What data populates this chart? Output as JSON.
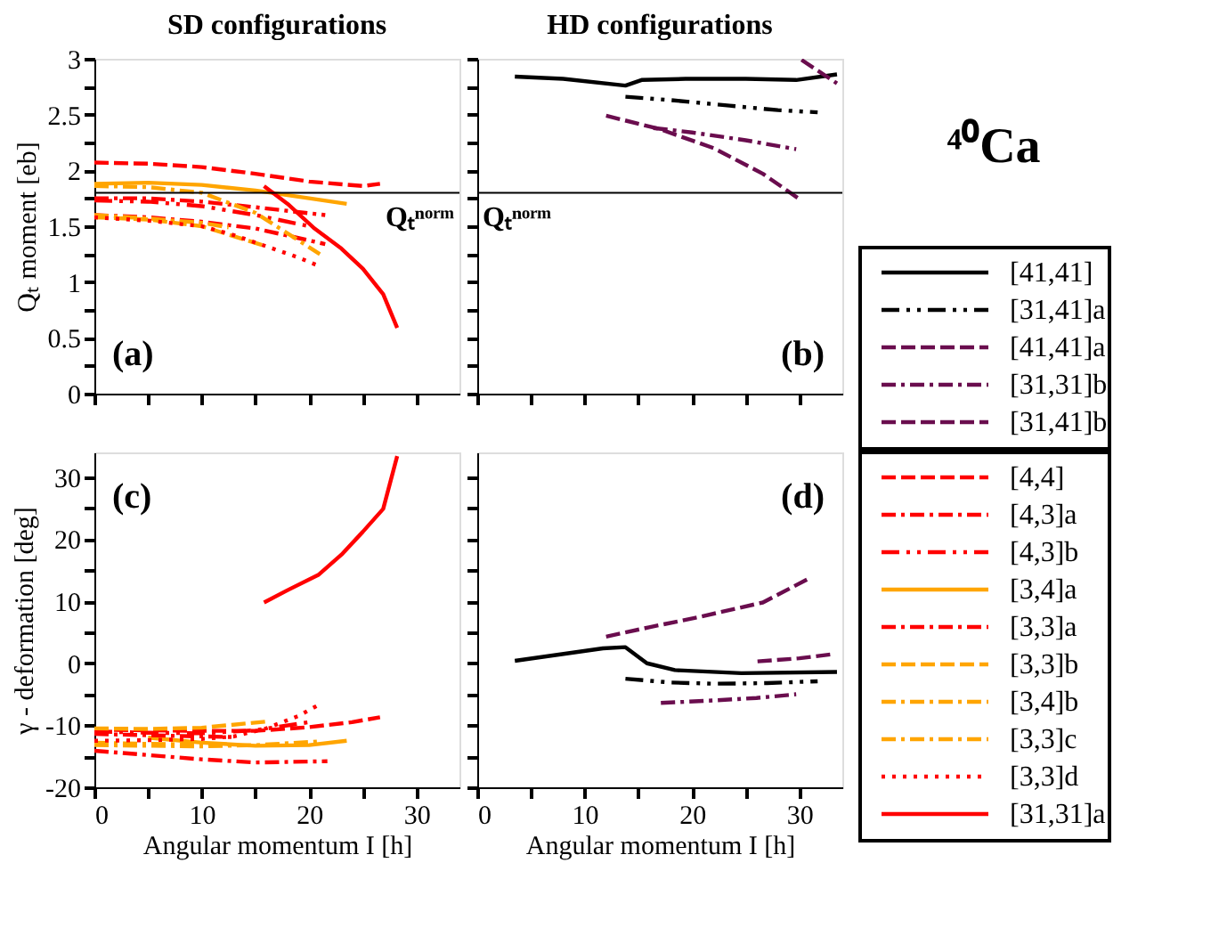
{
  "chart_data": [
    {
      "type": "line",
      "title": "SD  configurations",
      "ylabel": "Qₜ moment [eb]",
      "xlim": [
        0,
        34
      ],
      "ylim": [
        0,
        3
      ],
      "xticks": [
        0,
        {
          "value": 5,
          "label": null
        },
        10,
        {
          "value": 15,
          "label": null
        },
        20,
        {
          "value": 25,
          "label": null
        },
        30
      ],
      "yticks": [
        0,
        {
          "value": 0.25,
          "label": null
        },
        0.5,
        {
          "value": 0.75,
          "label": null
        },
        1,
        {
          "value": 1.25,
          "label": null
        },
        1.5,
        {
          "value": 1.75,
          "label": null
        },
        2,
        {
          "value": 2.25,
          "label": null
        },
        2.5,
        {
          "value": 2.75,
          "label": null
        },
        3
      ],
      "tick_labels": "y",
      "ref_lines": [
        {
          "axis": "y",
          "value": 1.8,
          "label": "Qₜⁿᵒʳᵐ",
          "color": "#000000"
        }
      ],
      "annotations": [
        "(a)"
      ],
      "series": [
        {
          "color": "#ff0000",
          "line_style": "dashed",
          "x": [
            0,
            5,
            10,
            15,
            20,
            25,
            26.6
          ],
          "values": [
            2.07,
            2.06,
            2.03,
            1.97,
            1.9,
            1.86,
            1.88
          ]
        },
        {
          "color": "#ff0000",
          "line_style": "dashdot",
          "x": [
            0,
            5,
            10,
            15,
            21.5
          ],
          "values": [
            1.75,
            1.75,
            1.72,
            1.67,
            1.6
          ]
        },
        {
          "color": "#ff0000",
          "line_style": "dashdotdot",
          "x": [
            0,
            5,
            10,
            15,
            20
          ],
          "values": [
            1.73,
            1.72,
            1.68,
            1.6,
            1.5
          ]
        },
        {
          "color": "#ffa500",
          "line_style": "solid",
          "x": [
            0,
            5,
            10,
            15,
            20,
            23.5
          ],
          "values": [
            1.88,
            1.89,
            1.87,
            1.82,
            1.75,
            1.7
          ]
        },
        {
          "color": "#ff0000",
          "line_style": "dashdot",
          "x": [
            0,
            5,
            10,
            15,
            21.5
          ],
          "values": [
            1.6,
            1.58,
            1.54,
            1.48,
            1.34
          ]
        },
        {
          "color": "#ffa500",
          "line_style": "dashed",
          "x": [
            0,
            5,
            10,
            16
          ],
          "values": [
            1.58,
            1.56,
            1.5,
            1.32
          ]
        },
        {
          "color": "#ffa500",
          "line_style": "dashdot",
          "x": [
            0,
            5,
            10,
            15,
            21
          ],
          "values": [
            1.86,
            1.85,
            1.8,
            1.62,
            1.25
          ]
        },
        {
          "color": "#ffa500",
          "line_style": "dashdot",
          "x": [
            0,
            5,
            10,
            12.5
          ],
          "values": [
            1.6,
            1.57,
            1.53,
            1.49
          ]
        },
        {
          "color": "#ff0000",
          "line_style": "dotted",
          "x": [
            0,
            5,
            10,
            13,
            16,
            19,
            21
          ],
          "values": [
            1.58,
            1.55,
            1.5,
            1.42,
            1.32,
            1.22,
            1.14
          ]
        },
        {
          "color": "#ff0000",
          "line_style": "solid",
          "x": [
            15.8,
            18,
            20.5,
            23,
            25,
            26.9,
            28.2
          ],
          "values": [
            1.86,
            1.7,
            1.48,
            1.3,
            1.12,
            0.89,
            0.59
          ]
        }
      ]
    },
    {
      "type": "line",
      "title": "HD configurations",
      "xlim": [
        0,
        34
      ],
      "ylim": [
        0,
        3
      ],
      "xticks": [
        0,
        {
          "value": 5,
          "label": null
        },
        10,
        {
          "value": 15,
          "label": null
        },
        20,
        {
          "value": 25,
          "label": null
        },
        30
      ],
      "yticks": [
        0,
        {
          "value": 0.25,
          "label": null
        },
        0.5,
        {
          "value": 0.75,
          "label": null
        },
        1,
        {
          "value": 1.25,
          "label": null
        },
        1.5,
        {
          "value": 1.75,
          "label": null
        },
        2,
        {
          "value": 2.25,
          "label": null
        },
        2.5,
        {
          "value": 2.75,
          "label": null
        },
        3
      ],
      "tick_labels": false,
      "legend": "right",
      "ref_lines": [
        {
          "axis": "y",
          "value": 1.8,
          "label": "Qₜⁿᵒʳᵐ",
          "color": "#000000"
        }
      ],
      "annotations": [
        "(b)",
        "⁴⁰Ca"
      ],
      "series": [
        {
          "name": "[41,41]",
          "color": "#000000",
          "line_style": "solid",
          "x": [
            3.5,
            8,
            13.8,
            15.3,
            19.4,
            25,
            29.7,
            33.5
          ],
          "values": [
            2.84,
            2.82,
            2.76,
            2.81,
            2.82,
            2.82,
            2.81,
            2.86
          ]
        },
        {
          "name": "[31,41]a",
          "color": "#000000",
          "line_style": "dashdotdot",
          "x": [
            13.8,
            18,
            23.5,
            28,
            31.7
          ],
          "values": [
            2.66,
            2.63,
            2.58,
            2.54,
            2.52
          ]
        },
        {
          "name": "[41,41]a",
          "color": "#6a0d4e",
          "line_style": "dashed",
          "x": [
            12,
            17,
            22,
            26.6,
            30.2
          ],
          "values": [
            2.49,
            2.37,
            2.2,
            1.97,
            1.73
          ]
        },
        {
          "name": "[31,31]b",
          "color": "#6a0d4e",
          "line_style": "dashdot",
          "x": [
            16.4,
            20,
            25,
            29.7
          ],
          "values": [
            2.38,
            2.34,
            2.27,
            2.19
          ]
        },
        {
          "name": "[31,41]b",
          "color": "#6a0d4e",
          "line_style": "dashed",
          "x": [
            30.2,
            33.5
          ],
          "values": [
            2.99,
            2.78
          ]
        }
      ]
    },
    {
      "type": "line",
      "xlabel": "Angular momentum I [h]",
      "ylabel": "γ - deformation [deg]",
      "xlim": [
        0,
        34
      ],
      "ylim": [
        -20,
        34
      ],
      "xticks": [
        0,
        {
          "value": 5,
          "label": null
        },
        10,
        {
          "value": 15,
          "label": null
        },
        20,
        {
          "value": 25,
          "label": null
        },
        30
      ],
      "yticks": [
        -20,
        {
          "value": -15,
          "label": null
        },
        -10,
        {
          "value": -5,
          "label": null
        },
        0,
        {
          "value": 5,
          "label": null
        },
        10,
        {
          "value": 15,
          "label": null
        },
        20,
        {
          "value": 25,
          "label": null
        },
        30
      ],
      "legend": "right",
      "annotations": [
        "(c)"
      ],
      "series": [
        {
          "name": "[4,4]",
          "color": "#ff0000",
          "line_style": "dashed",
          "x": [
            0,
            5,
            10,
            15,
            20,
            24,
            26.6
          ],
          "values": [
            -10.7,
            -10.8,
            -10.9,
            -10.9,
            -10.3,
            -9.5,
            -8.7
          ]
        },
        {
          "name": "[4,3]a",
          "color": "#ff0000",
          "line_style": "dashdot",
          "x": [
            0,
            5,
            10,
            15,
            21.7
          ],
          "values": [
            -14.1,
            -14.8,
            -15.5,
            -16,
            -15.8
          ]
        },
        {
          "name": "[4,3]b",
          "color": "#ff0000",
          "line_style": "dashdotdot",
          "x": [
            0,
            5,
            10,
            15,
            20
          ],
          "values": [
            -11,
            -11.2,
            -11.3,
            -10.8,
            -9.5
          ]
        },
        {
          "name": "[3,4]a",
          "color": "#ffa500",
          "line_style": "solid",
          "x": [
            5,
            10,
            15,
            20,
            23.5
          ],
          "values": [
            -12,
            -12.8,
            -13.3,
            -13.2,
            -12.5
          ]
        },
        {
          "name": "[3,3]a",
          "color": "#ff0000",
          "line_style": "dashdot",
          "x": [
            0,
            5,
            10,
            13
          ],
          "values": [
            -11.4,
            -11.6,
            -11.8,
            -11.9
          ]
        },
        {
          "name": "[3,3]b",
          "color": "#ffa500",
          "line_style": "dashed",
          "x": [
            0,
            5,
            10,
            16
          ],
          "values": [
            -10.5,
            -10.6,
            -10.4,
            -9.4
          ]
        },
        {
          "name": "[3,4]b",
          "color": "#ffa500",
          "line_style": "dashdot",
          "x": [
            0,
            5,
            10,
            15,
            21
          ],
          "values": [
            -13.2,
            -13.3,
            -13.4,
            -13.2,
            -12.6
          ]
        },
        {
          "name": "[3,3]c",
          "color": "#ffa500",
          "line_style": "dashdot",
          "x": [
            0,
            5,
            10,
            13
          ],
          "values": [
            -12.8,
            -13,
            -13.1,
            -13.2
          ]
        },
        {
          "name": "[3,3]d",
          "color": "#ff0000",
          "line_style": "dotted",
          "x": [
            0,
            5,
            10,
            13,
            16,
            19,
            21
          ],
          "values": [
            -12.5,
            -12.4,
            -12.2,
            -11.8,
            -10.5,
            -8.5,
            -6.6
          ]
        },
        {
          "name": "[31,31]a",
          "color": "#ff0000",
          "line_style": "solid",
          "x": [
            15.8,
            18,
            20.9,
            23,
            25,
            26.9,
            28.2
          ],
          "values": [
            9.8,
            11.8,
            14.3,
            17.5,
            21.2,
            24.9,
            33.4
          ]
        }
      ]
    },
    {
      "type": "line",
      "xlabel": "Angular momentum I [h]",
      "xlim": [
        0,
        34
      ],
      "ylim": [
        -20,
        34
      ],
      "xticks": [
        0,
        {
          "value": 5,
          "label": null
        },
        10,
        {
          "value": 15,
          "label": null
        },
        20,
        {
          "value": 25,
          "label": null
        },
        30
      ],
      "yticks": [
        -20,
        {
          "value": -15,
          "label": null
        },
        -10,
        {
          "value": -5,
          "label": null
        },
        0,
        {
          "value": 5,
          "label": null
        },
        10,
        {
          "value": 15,
          "label": null
        },
        20,
        {
          "value": 25,
          "label": null
        },
        30
      ],
      "tick_labels": "x",
      "annotations": [
        "(d)"
      ],
      "series": [
        {
          "color": "#000000",
          "line_style": "solid",
          "x": [
            3.5,
            11.7,
            13.8,
            15.8,
            18.4,
            24.6,
            33.5
          ],
          "values": [
            0.4,
            2.4,
            2.6,
            0,
            -1.1,
            -1.6,
            -1.4
          ]
        },
        {
          "color": "#000000",
          "line_style": "dashdotdot",
          "x": [
            13.8,
            18,
            22,
            27,
            31.7
          ],
          "values": [
            -2.5,
            -3.1,
            -3.3,
            -3.2,
            -2.9
          ]
        },
        {
          "color": "#6a0d4e",
          "line_style": "dashed",
          "x": [
            12,
            16,
            20.5,
            26.6,
            30.7
          ],
          "values": [
            4.3,
            5.8,
            7.4,
            9.8,
            13.5
          ]
        },
        {
          "color": "#6a0d4e",
          "line_style": "dashdot",
          "x": [
            17.1,
            22,
            26,
            29.7
          ],
          "values": [
            -6.4,
            -6,
            -5.6,
            -5
          ]
        },
        {
          "color": "#6a0d4e",
          "line_style": "dashed",
          "x": [
            26.1,
            30,
            33.3
          ],
          "values": [
            0.3,
            0.8,
            1.5
          ]
        }
      ]
    }
  ]
}
